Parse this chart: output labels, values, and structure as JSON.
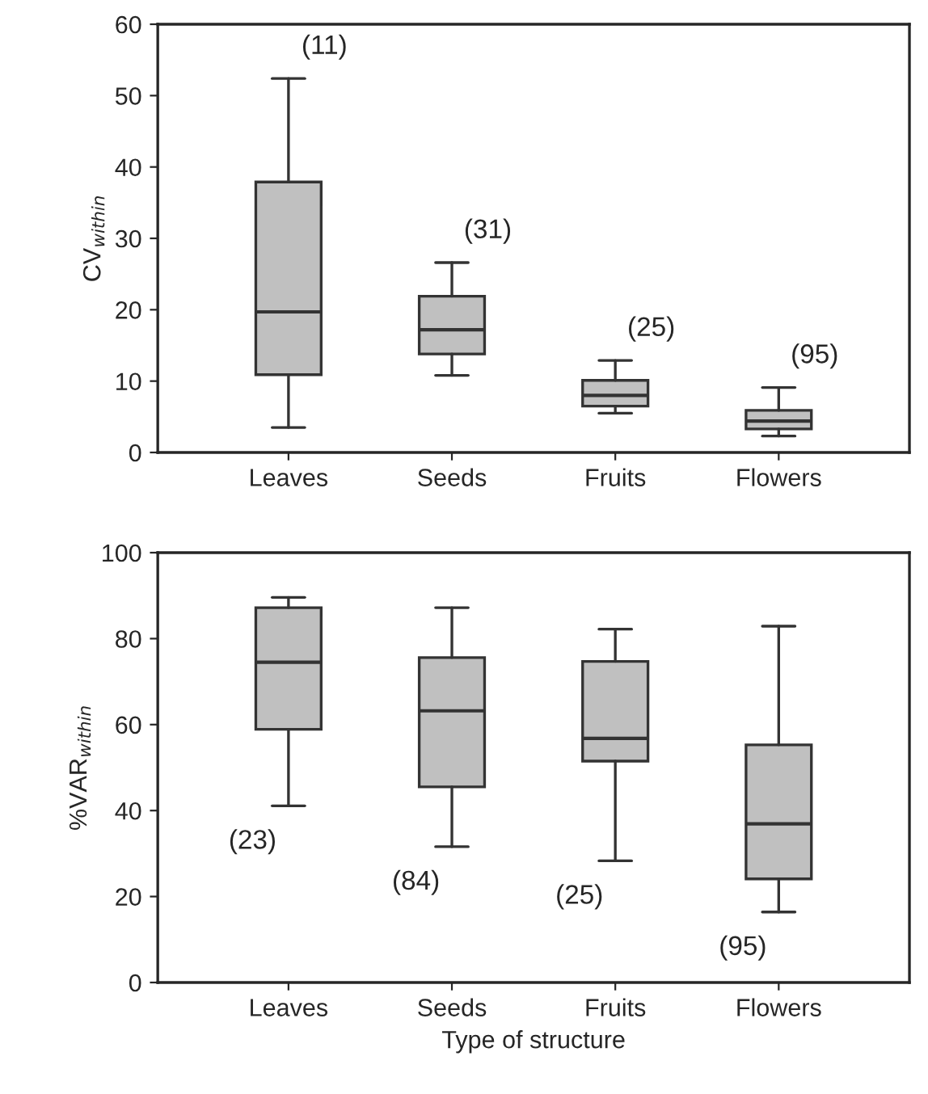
{
  "chart_data": [
    {
      "type": "box",
      "ylabel": "CV$_{within}$",
      "categories": [
        "Leaves",
        "Seeds",
        "Fruits",
        "Flowers"
      ],
      "color": "#c0c0c0",
      "ylim": [
        0,
        60
      ],
      "yticks": [
        0,
        10,
        20,
        30,
        40,
        50,
        60
      ],
      "grid": false,
      "boxes": [
        {
          "low": 3.5,
          "q1": 10.9,
          "median": 19.7,
          "q3": 37.9,
          "high": 52.4
        },
        {
          "low": 10.8,
          "q1": 13.8,
          "median": 17.2,
          "q3": 21.9,
          "high": 26.6
        },
        {
          "low": 5.5,
          "q1": 6.5,
          "median": 8.0,
          "q3": 10.1,
          "high": 12.9
        },
        {
          "low": 2.3,
          "q1": 3.3,
          "median": 4.4,
          "q3": 5.9,
          "high": 9.1
        }
      ],
      "annotations": [
        "(11)",
        "(31)",
        "(25)",
        "(95)"
      ]
    },
    {
      "type": "box",
      "ylabel": "%VAR$_{within}$",
      "xlabel": "Type of structure",
      "categories": [
        "Leaves",
        "Seeds",
        "Fruits",
        "Flowers"
      ],
      "color": "#c0c0c0",
      "ylim": [
        0,
        100
      ],
      "yticks": [
        0,
        20,
        40,
        60,
        80,
        100
      ],
      "grid": false,
      "boxes": [
        {
          "low": 41.1,
          "q1": 58.9,
          "median": 74.5,
          "q3": 87.2,
          "high": 89.6
        },
        {
          "low": 31.6,
          "q1": 45.5,
          "median": 63.2,
          "q3": 75.6,
          "high": 87.2
        },
        {
          "low": 28.3,
          "q1": 51.5,
          "median": 56.8,
          "q3": 74.7,
          "high": 82.2
        },
        {
          "low": 16.4,
          "q1": 24.1,
          "median": 36.9,
          "q3": 55.3,
          "high": 82.9
        }
      ],
      "annotations": [
        "(23)",
        "(84)",
        "(25)",
        "(95)"
      ]
    }
  ]
}
